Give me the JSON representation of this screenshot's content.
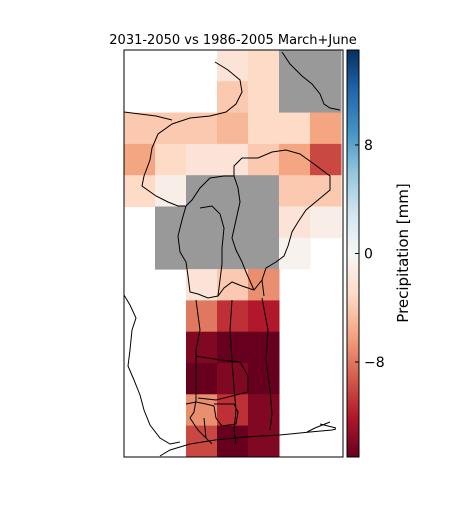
{
  "chart_data": {
    "type": "heatmap",
    "title": "2031-2050 vs 1986-2005 March+June",
    "colorbar": {
      "label": "Precipitation [mm]",
      "range": [
        -15,
        15
      ],
      "ticks": [
        8,
        0,
        -8
      ],
      "tick_labels": [
        "8",
        "0",
        "−8"
      ],
      "colormap": "RdBu"
    },
    "grid": {
      "columns": 7,
      "rows": 13
    },
    "missing_color": "#999999",
    "cells": [
      {
        "col": 3,
        "row": 0,
        "value": -2
      },
      {
        "col": 4,
        "row": 0,
        "value": -3
      },
      {
        "col": 5,
        "row": 0,
        "value": null
      },
      {
        "col": 6,
        "row": 0,
        "value": null
      },
      {
        "col": 3,
        "row": 1,
        "value": -4
      },
      {
        "col": 4,
        "row": 1,
        "value": -3
      },
      {
        "col": 5,
        "row": 1,
        "value": null
      },
      {
        "col": 6,
        "row": 1,
        "value": null
      },
      {
        "col": 0,
        "row": 2,
        "value": -4
      },
      {
        "col": 1,
        "row": 2,
        "value": -4
      },
      {
        "col": 2,
        "row": 2,
        "value": -4
      },
      {
        "col": 3,
        "row": 2,
        "value": -5
      },
      {
        "col": 4,
        "row": 2,
        "value": -3
      },
      {
        "col": 5,
        "row": 2,
        "value": -3
      },
      {
        "col": 6,
        "row": 2,
        "value": -6
      },
      {
        "col": 0,
        "row": 3,
        "value": -6
      },
      {
        "col": 1,
        "row": 3,
        "value": -3
      },
      {
        "col": 2,
        "row": 3,
        "value": -2
      },
      {
        "col": 3,
        "row": 3,
        "value": -2
      },
      {
        "col": 4,
        "row": 3,
        "value": -4
      },
      {
        "col": 5,
        "row": 3,
        "value": -6
      },
      {
        "col": 6,
        "row": 3,
        "value": -10
      },
      {
        "col": 0,
        "row": 4,
        "value": -3
      },
      {
        "col": 1,
        "row": 4,
        "value": -1
      },
      {
        "col": 2,
        "row": 4,
        "value": null
      },
      {
        "col": 3,
        "row": 4,
        "value": null
      },
      {
        "col": 4,
        "row": 4,
        "value": null
      },
      {
        "col": 5,
        "row": 4,
        "value": -4
      },
      {
        "col": 6,
        "row": 4,
        "value": -4
      },
      {
        "col": 1,
        "row": 5,
        "value": null
      },
      {
        "col": 2,
        "row": 5,
        "value": null
      },
      {
        "col": 3,
        "row": 5,
        "value": null
      },
      {
        "col": 4,
        "row": 5,
        "value": null
      },
      {
        "col": 5,
        "row": 5,
        "value": -2
      },
      {
        "col": 6,
        "row": 5,
        "value": -1
      },
      {
        "col": 1,
        "row": 6,
        "value": null
      },
      {
        "col": 2,
        "row": 6,
        "value": null
      },
      {
        "col": 3,
        "row": 6,
        "value": null
      },
      {
        "col": 4,
        "row": 6,
        "value": null
      },
      {
        "col": 5,
        "row": 6,
        "value": -0.5
      },
      {
        "col": 2,
        "row": 7,
        "value": -2
      },
      {
        "col": 3,
        "row": 7,
        "value": -4
      },
      {
        "col": 4,
        "row": 7,
        "value": -7
      },
      {
        "col": 2,
        "row": 8,
        "value": -8
      },
      {
        "col": 3,
        "row": 8,
        "value": -11
      },
      {
        "col": 4,
        "row": 8,
        "value": -12
      },
      {
        "col": 2,
        "row": 9,
        "value": -14
      },
      {
        "col": 3,
        "row": 9,
        "value": -15
      },
      {
        "col": 4,
        "row": 9,
        "value": -15
      },
      {
        "col": 2,
        "row": 10,
        "value": -15
      },
      {
        "col": 3,
        "row": 10,
        "value": -14
      },
      {
        "col": 4,
        "row": 10,
        "value": -15
      },
      {
        "col": 2,
        "row": 11,
        "value": -7
      },
      {
        "col": 3,
        "row": 11,
        "value": -11
      },
      {
        "col": 4,
        "row": 11,
        "value": -14
      },
      {
        "col": 2,
        "row": 12,
        "value": -10
      },
      {
        "col": 3,
        "row": 12,
        "value": -15
      },
      {
        "col": 4,
        "row": 12,
        "value": -14
      }
    ]
  }
}
